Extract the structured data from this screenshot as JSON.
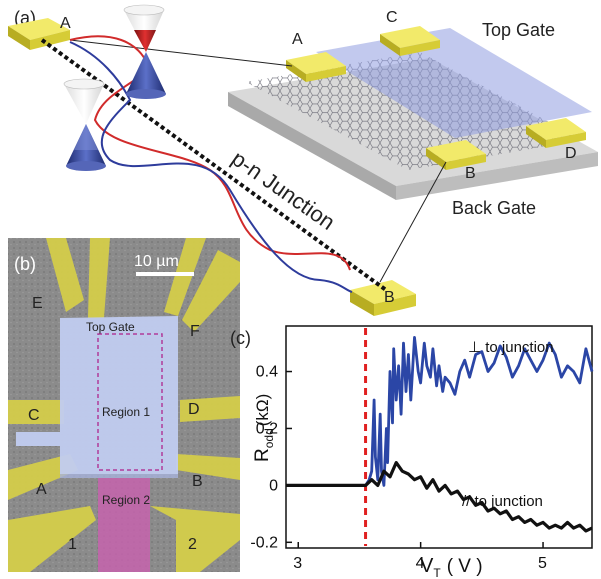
{
  "panels": {
    "a": {
      "label": "(a)",
      "contacts": {
        "A": "A",
        "B": "B",
        "C": "C",
        "D": "D"
      },
      "top_gate": "Top Gate",
      "back_gate": "Back Gate",
      "junction": "p-n Junction",
      "colors": {
        "contact": "#e6de3c",
        "top_gate": "#9aa6e6",
        "back_gate": "#c8c8c8",
        "p_line": "#d12b2b",
        "n_line": "#2e3c9c"
      }
    },
    "b": {
      "label": "(b)",
      "scale_bar": "10 µm",
      "top_gate": "Top Gate",
      "region1": "Region 1",
      "region2": "Region 2",
      "contacts": {
        "A": "A",
        "B": "B",
        "C": "C",
        "D": "D",
        "E": "E",
        "F": "F",
        "one": "1",
        "two": "2"
      },
      "colors": {
        "contact": "#d8d24a",
        "gate": "#b9c6ec",
        "region2": "#c060a8",
        "substrate": "#8a8a8a"
      }
    },
    "c": {
      "label": "(c)",
      "ylabel": "R",
      "ylabel_sub": "odd",
      "ylabel_unit": "(kΩ)",
      "xlabel": "V",
      "xlabel_sub": "T",
      "xlabel_unit": "( V )",
      "xticks": [
        "3",
        "4",
        "5"
      ],
      "yticks": [
        "0.4",
        "0.2",
        "0",
        "-0.2"
      ],
      "perp_label": "⊥ to junction",
      "par_label": "// to junction"
    }
  },
  "chart_data": {
    "type": "line",
    "title": "",
    "xlabel": "VT (V)",
    "ylabel": "Rodd (kΩ)",
    "xlim": [
      2.9,
      5.4
    ],
    "ylim": [
      -0.22,
      0.56
    ],
    "xticks": [
      3,
      4,
      5
    ],
    "yticks": [
      -0.2,
      0,
      0.2,
      0.4
    ],
    "marker_line": {
      "x": 3.55,
      "style": "dashed",
      "color": "#e02020"
    },
    "series": [
      {
        "name": "⊥ to junction",
        "color": "#2b46a6",
        "x": [
          3.55,
          3.58,
          3.6,
          3.62,
          3.63,
          3.65,
          3.67,
          3.68,
          3.7,
          3.72,
          3.73,
          3.75,
          3.77,
          3.78,
          3.8,
          3.82,
          3.84,
          3.86,
          3.88,
          3.9,
          3.92,
          3.95,
          3.98,
          4.0,
          4.03,
          4.05,
          4.08,
          4.1,
          4.13,
          4.15,
          4.18,
          4.2,
          4.24,
          4.28,
          4.32,
          4.36,
          4.4,
          4.45,
          4.5,
          4.55,
          4.6,
          4.65,
          4.7,
          4.75,
          4.8,
          4.85,
          4.9,
          4.95,
          5.0,
          5.05,
          5.1,
          5.15,
          5.2,
          5.25,
          5.3,
          5.35,
          5.4
        ],
        "y": [
          0.0,
          0.02,
          0.05,
          0.3,
          0.1,
          0.02,
          0.25,
          0.05,
          0.0,
          0.2,
          0.08,
          0.4,
          0.22,
          0.48,
          0.3,
          0.42,
          0.25,
          0.5,
          0.33,
          0.46,
          0.3,
          0.52,
          0.4,
          0.36,
          0.5,
          0.42,
          0.38,
          0.48,
          0.35,
          0.42,
          0.33,
          0.38,
          0.36,
          0.32,
          0.4,
          0.44,
          0.38,
          0.46,
          0.47,
          0.4,
          0.43,
          0.49,
          0.45,
          0.38,
          0.42,
          0.48,
          0.44,
          0.4,
          0.44,
          0.5,
          0.46,
          0.38,
          0.42,
          0.4,
          0.36,
          0.48,
          0.4
        ]
      },
      {
        "name": "// to junction",
        "color": "#111111",
        "x": [
          2.9,
          3.0,
          3.2,
          3.4,
          3.55,
          3.6,
          3.65,
          3.7,
          3.75,
          3.8,
          3.85,
          3.9,
          3.95,
          4.0,
          4.05,
          4.1,
          4.15,
          4.2,
          4.25,
          4.3,
          4.35,
          4.4,
          4.45,
          4.5,
          4.55,
          4.6,
          4.65,
          4.7,
          4.75,
          4.8,
          4.85,
          4.9,
          4.95,
          5.0,
          5.05,
          5.1,
          5.15,
          5.2,
          5.25,
          5.3,
          5.35,
          5.4
        ],
        "y": [
          0.0,
          0.0,
          0.0,
          0.0,
          0.0,
          0.02,
          0.0,
          0.05,
          0.03,
          0.08,
          0.05,
          0.04,
          0.02,
          0.03,
          -0.01,
          0.02,
          -0.02,
          0.0,
          -0.03,
          -0.02,
          -0.05,
          -0.04,
          -0.07,
          -0.06,
          -0.09,
          -0.08,
          -0.1,
          -0.09,
          -0.12,
          -0.11,
          -0.13,
          -0.12,
          -0.14,
          -0.13,
          -0.15,
          -0.14,
          -0.15,
          -0.13,
          -0.15,
          -0.14,
          -0.16,
          -0.15
        ]
      }
    ]
  }
}
